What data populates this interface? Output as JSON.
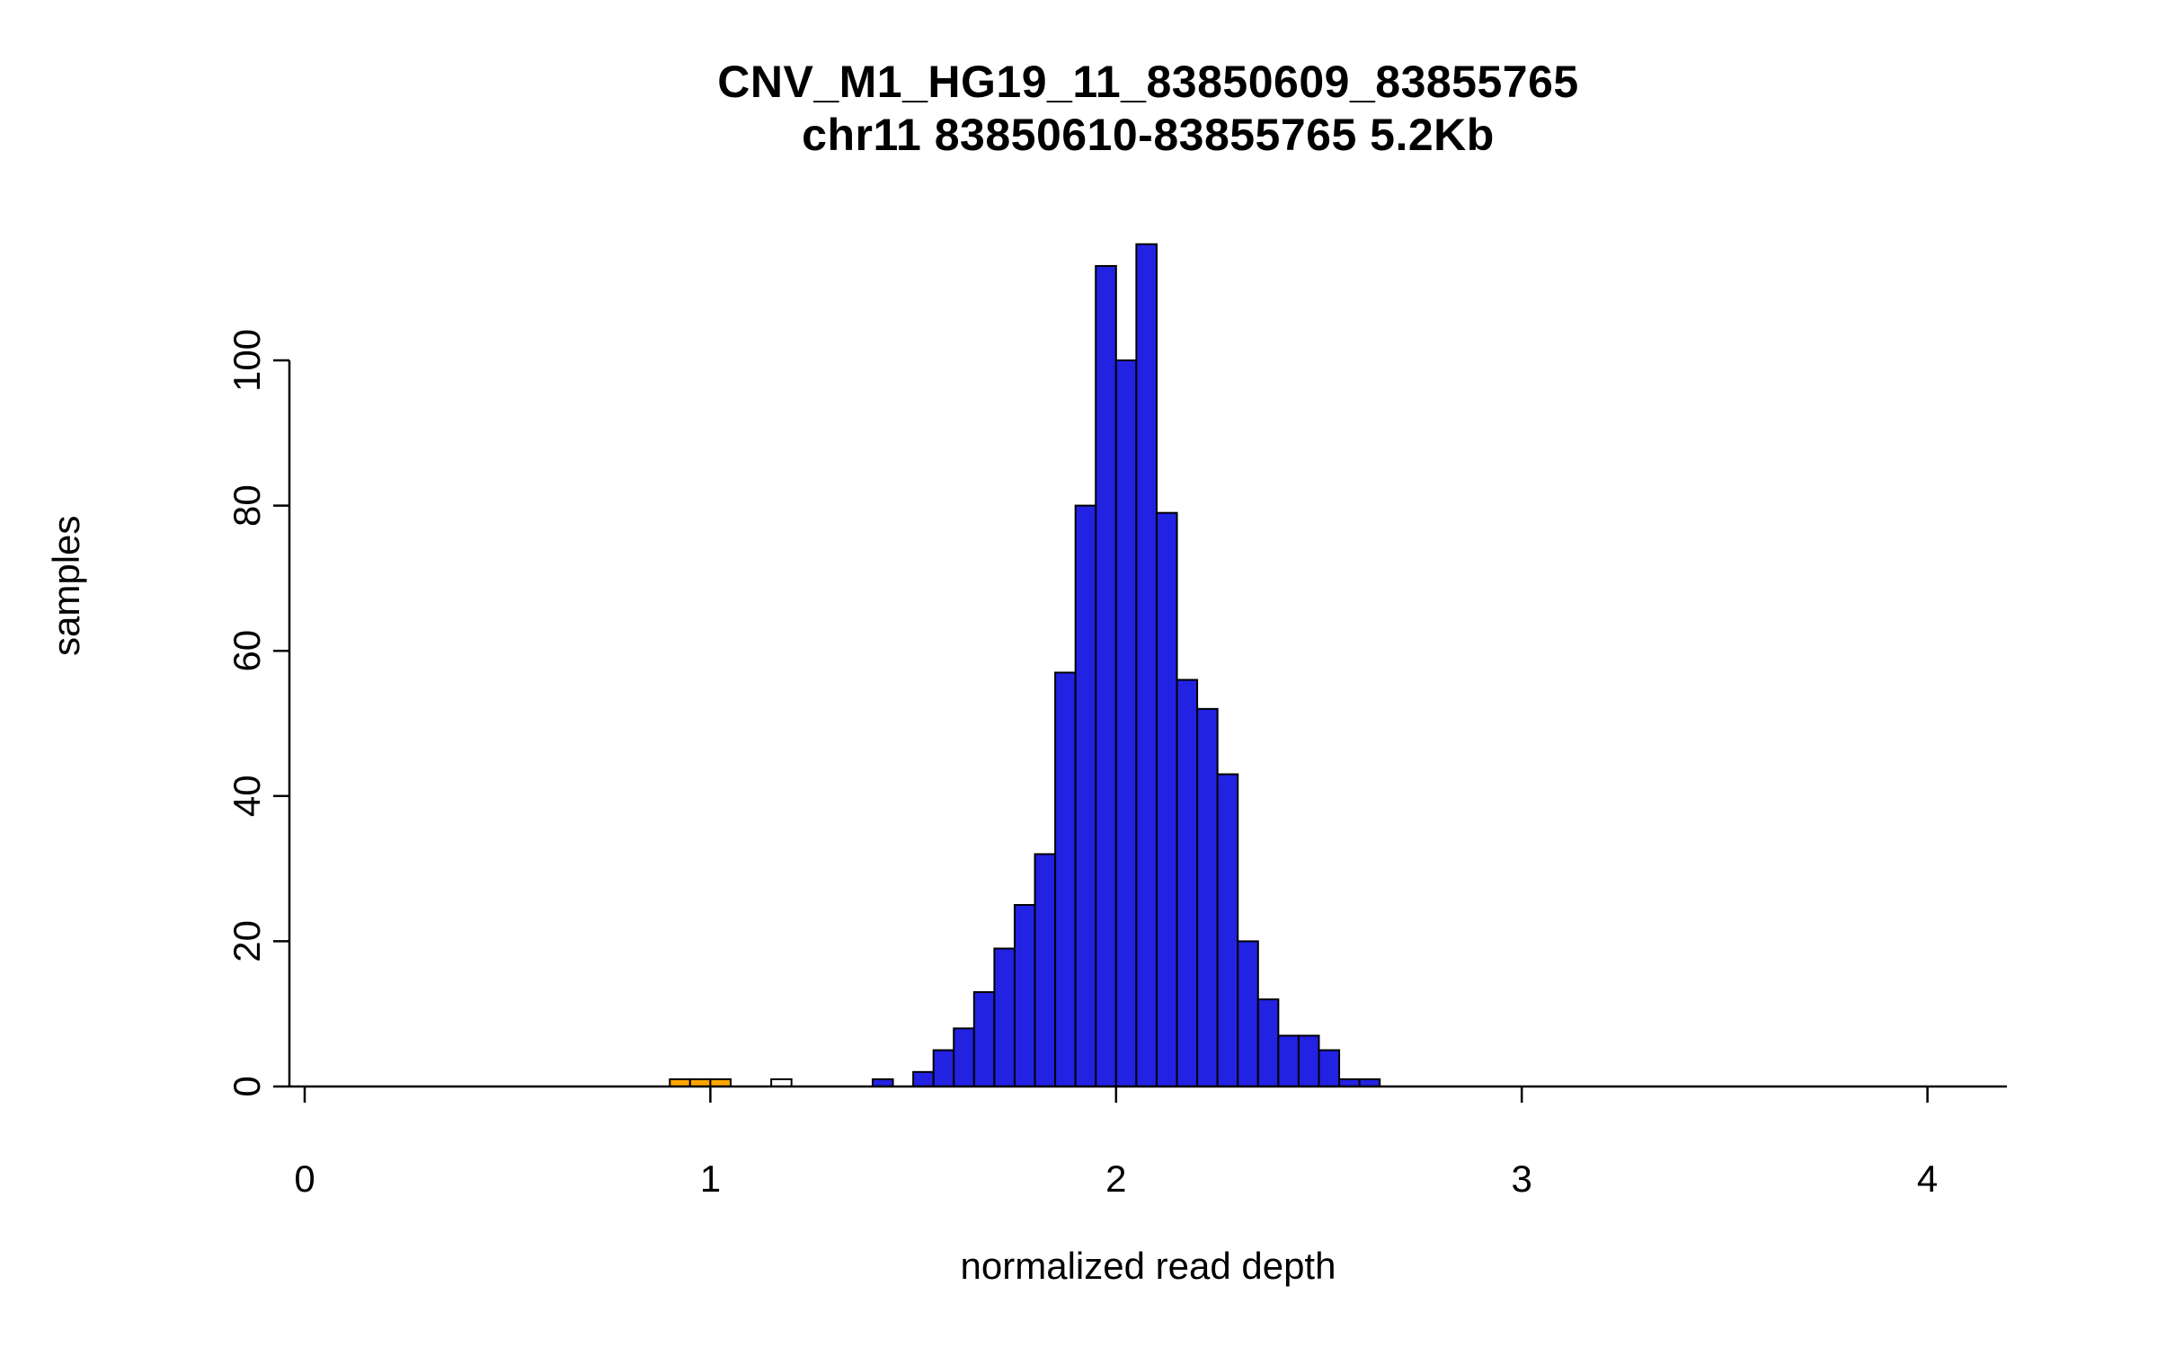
{
  "chart_data": {
    "type": "bar",
    "subtype": "histogram",
    "title": "CNV_M1_HG19_11_83850609_83855765",
    "subtitle": "chr11 83850610-83855765 5.2Kb",
    "xlabel": "normalized read depth",
    "ylabel": "samples",
    "xlim": [
      0,
      4.2
    ],
    "ylim": [
      0,
      116
    ],
    "x_ticks": [
      0,
      1,
      2,
      3,
      4
    ],
    "y_ticks": [
      0,
      20,
      40,
      60,
      80,
      100
    ],
    "bin_width": 0.05,
    "grid": "off",
    "legend": "none",
    "colors": {
      "normal_bar": "#2222E2",
      "deletion_bar": "#FFA500",
      "empty_bar": "#FFFFFF",
      "bar_border": "#000000",
      "axis": "#000000",
      "background": "#FFFFFF"
    },
    "bars": [
      {
        "x0": 0.9,
        "x1": 0.95,
        "count": 1,
        "color": "#FFA500"
      },
      {
        "x0": 0.95,
        "x1": 1.0,
        "count": 1,
        "color": "#FFA500"
      },
      {
        "x0": 1.0,
        "x1": 1.05,
        "count": 1,
        "color": "#FFA500"
      },
      {
        "x0": 1.15,
        "x1": 1.2,
        "count": 1,
        "color": "#FFFFFF"
      },
      {
        "x0": 1.4,
        "x1": 1.45,
        "count": 1,
        "color": "#2222E2"
      },
      {
        "x0": 1.5,
        "x1": 1.55,
        "count": 2,
        "color": "#2222E2"
      },
      {
        "x0": 1.55,
        "x1": 1.6,
        "count": 5,
        "color": "#2222E2"
      },
      {
        "x0": 1.6,
        "x1": 1.65,
        "count": 8,
        "color": "#2222E2"
      },
      {
        "x0": 1.65,
        "x1": 1.7,
        "count": 13,
        "color": "#2222E2"
      },
      {
        "x0": 1.7,
        "x1": 1.75,
        "count": 19,
        "color": "#2222E2"
      },
      {
        "x0": 1.75,
        "x1": 1.8,
        "count": 25,
        "color": "#2222E2"
      },
      {
        "x0": 1.8,
        "x1": 1.85,
        "count": 32,
        "color": "#2222E2"
      },
      {
        "x0": 1.85,
        "x1": 1.9,
        "count": 57,
        "color": "#2222E2"
      },
      {
        "x0": 1.9,
        "x1": 1.95,
        "count": 80,
        "color": "#2222E2"
      },
      {
        "x0": 1.95,
        "x1": 2.0,
        "count": 113,
        "color": "#2222E2"
      },
      {
        "x0": 2.0,
        "x1": 2.05,
        "count": 100,
        "color": "#2222E2"
      },
      {
        "x0": 2.05,
        "x1": 2.1,
        "count": 116,
        "color": "#2222E2"
      },
      {
        "x0": 2.1,
        "x1": 2.15,
        "count": 79,
        "color": "#2222E2"
      },
      {
        "x0": 2.15,
        "x1": 2.2,
        "count": 56,
        "color": "#2222E2"
      },
      {
        "x0": 2.2,
        "x1": 2.25,
        "count": 52,
        "color": "#2222E2"
      },
      {
        "x0": 2.25,
        "x1": 2.3,
        "count": 43,
        "color": "#2222E2"
      },
      {
        "x0": 2.3,
        "x1": 2.35,
        "count": 20,
        "color": "#2222E2"
      },
      {
        "x0": 2.35,
        "x1": 2.4,
        "count": 12,
        "color": "#2222E2"
      },
      {
        "x0": 2.4,
        "x1": 2.45,
        "count": 7,
        "color": "#2222E2"
      },
      {
        "x0": 2.45,
        "x1": 2.5,
        "count": 7,
        "color": "#2222E2"
      },
      {
        "x0": 2.5,
        "x1": 2.55,
        "count": 5,
        "color": "#2222E2"
      },
      {
        "x0": 2.55,
        "x1": 2.6,
        "count": 1,
        "color": "#2222E2"
      },
      {
        "x0": 2.6,
        "x1": 2.65,
        "count": 1,
        "color": "#2222E2"
      }
    ]
  }
}
